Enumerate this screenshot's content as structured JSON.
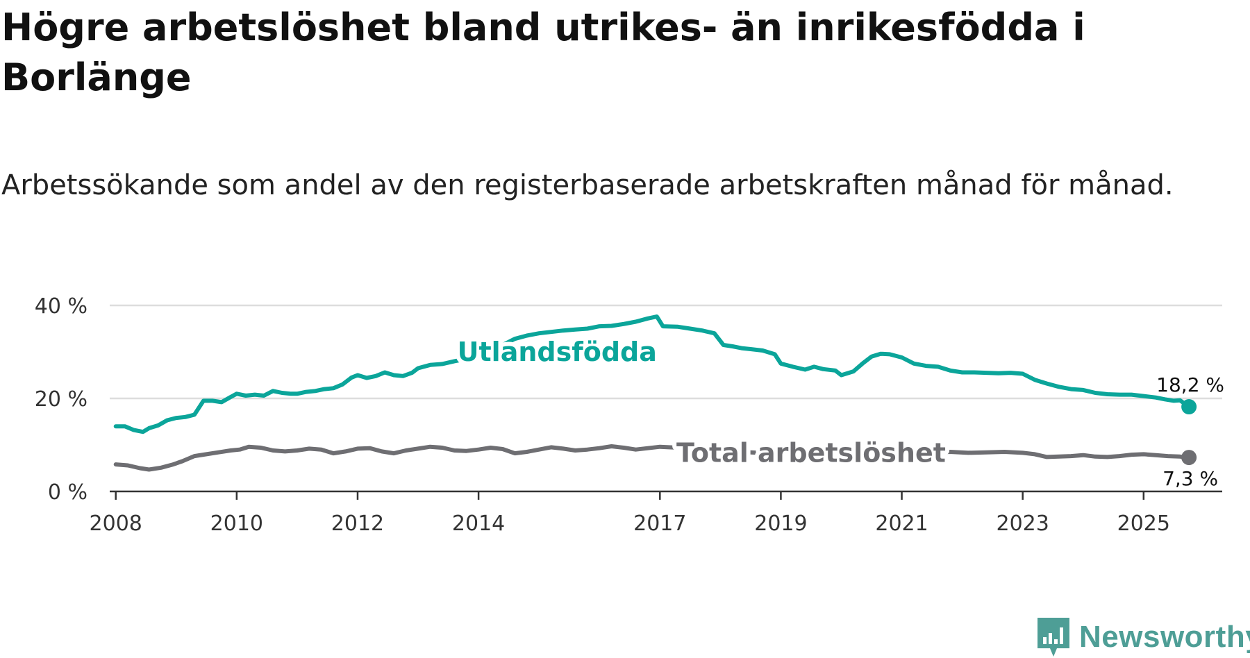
{
  "header": {
    "title": "Högre arbetslöshet bland utrikes- än inrikesfödda i Borlänge",
    "subtitle": "Arbetssökande som andel av den registerbaserade arbetskraften månad för månad."
  },
  "brand": {
    "name": "Newsworthy",
    "color": "#4e9e96"
  },
  "colors": {
    "foreign": "#0ba59a",
    "total": "#6e6e72",
    "grid": "#dddddd",
    "axis": "#333333"
  },
  "chart_data": {
    "type": "line",
    "title": "Högre arbetslöshet bland utrikes- än inrikesfödda i Borlänge",
    "xlabel": "",
    "ylabel": "",
    "xlim": [
      2007.9,
      2026.3
    ],
    "ylim": [
      0,
      40
    ],
    "y_ticks": [
      {
        "value": 0,
        "label": "0 %"
      },
      {
        "value": 20,
        "label": "20 %"
      },
      {
        "value": 40,
        "label": "40 %"
      }
    ],
    "x_ticks": [
      {
        "value": 2008,
        "label": "2008"
      },
      {
        "value": 2010,
        "label": "2010"
      },
      {
        "value": 2012,
        "label": "2012"
      },
      {
        "value": 2014,
        "label": "2014"
      },
      {
        "value": 2017,
        "label": "2017"
      },
      {
        "value": 2019,
        "label": "2019"
      },
      {
        "value": 2021,
        "label": "2021"
      },
      {
        "value": 2023,
        "label": "2023"
      },
      {
        "value": 2025,
        "label": "2025"
      }
    ],
    "grid": true,
    "series": [
      {
        "name": "Utlandsfödda",
        "color": "#0ba59a",
        "end_label": "18,2 %",
        "x": [
          2008.0,
          2008.15,
          2008.3,
          2008.45,
          2008.55,
          2008.7,
          2008.85,
          2009.0,
          2009.15,
          2009.3,
          2009.45,
          2009.6,
          2009.75,
          2009.9,
          2010.0,
          2010.15,
          2010.3,
          2010.45,
          2010.6,
          2010.75,
          2010.9,
          2011.0,
          2011.15,
          2011.3,
          2011.45,
          2011.6,
          2011.75,
          2011.9,
          2012.0,
          2012.15,
          2012.3,
          2012.45,
          2012.6,
          2012.75,
          2012.9,
          2013.0,
          2013.2,
          2013.4,
          2013.6,
          2013.8,
          2014.0,
          2014.2,
          2014.4,
          2014.6,
          2014.8,
          2015.0,
          2015.2,
          2015.4,
          2015.6,
          2015.8,
          2016.0,
          2016.2,
          2016.4,
          2016.6,
          2016.8,
          2016.95,
          2017.05,
          2017.3,
          2017.5,
          2017.7,
          2017.9,
          2018.05,
          2018.2,
          2018.35,
          2018.5,
          2018.7,
          2018.9,
          2019.0,
          2019.2,
          2019.4,
          2019.55,
          2019.7,
          2019.9,
          2020.0,
          2020.2,
          2020.35,
          2020.5,
          2020.65,
          2020.8,
          2021.0,
          2021.2,
          2021.4,
          2021.6,
          2021.8,
          2022.0,
          2022.2,
          2022.4,
          2022.6,
          2022.8,
          2023.0,
          2023.2,
          2023.4,
          2023.6,
          2023.8,
          2024.0,
          2024.2,
          2024.4,
          2024.6,
          2024.8,
          2025.0,
          2025.2,
          2025.35,
          2025.5,
          2025.6,
          2025.75
        ],
        "values": [
          14.0,
          14.0,
          13.2,
          12.8,
          13.6,
          14.2,
          15.3,
          15.8,
          16.0,
          16.5,
          19.5,
          19.5,
          19.2,
          20.3,
          21.0,
          20.6,
          20.8,
          20.6,
          21.6,
          21.2,
          21.0,
          21.0,
          21.4,
          21.6,
          22.0,
          22.2,
          23.0,
          24.5,
          25.0,
          24.4,
          24.8,
          25.6,
          25.0,
          24.8,
          25.5,
          26.5,
          27.2,
          27.4,
          28.0,
          28.5,
          29.2,
          30.5,
          31.5,
          32.8,
          33.5,
          34.0,
          34.3,
          34.6,
          34.8,
          35.0,
          35.5,
          35.6,
          36.0,
          36.5,
          37.2,
          37.6,
          35.5,
          35.4,
          35.0,
          34.6,
          34.0,
          31.5,
          31.2,
          30.8,
          30.6,
          30.3,
          29.5,
          27.5,
          26.8,
          26.2,
          26.8,
          26.3,
          26.0,
          25.0,
          25.8,
          27.5,
          29.0,
          29.6,
          29.5,
          28.8,
          27.5,
          27.0,
          26.8,
          26.0,
          25.6,
          25.6,
          25.5,
          25.4,
          25.5,
          25.3,
          24.0,
          23.2,
          22.5,
          22.0,
          21.8,
          21.2,
          20.9,
          20.8,
          20.8,
          20.5,
          20.2,
          19.8,
          19.5,
          19.6,
          18.2
        ]
      },
      {
        "name": "Total arbetslöshet",
        "color": "#6e6e72",
        "end_label": "7,3 %",
        "x": [
          2008.0,
          2008.2,
          2008.4,
          2008.55,
          2008.75,
          2008.95,
          2009.1,
          2009.3,
          2009.5,
          2009.7,
          2009.9,
          2010.05,
          2010.2,
          2010.4,
          2010.6,
          2010.8,
          2011.0,
          2011.2,
          2011.4,
          2011.6,
          2011.8,
          2012.0,
          2012.2,
          2012.4,
          2012.6,
          2012.8,
          2013.0,
          2013.2,
          2013.4,
          2013.6,
          2013.8,
          2014.0,
          2014.2,
          2014.4,
          2014.6,
          2014.8,
          2015.0,
          2015.2,
          2015.4,
          2015.6,
          2015.8,
          2016.0,
          2016.2,
          2016.4,
          2016.6,
          2016.8,
          2017.0,
          2017.3,
          2017.6,
          2017.9,
          2018.2,
          2018.5,
          2018.8,
          2019.1,
          2019.4,
          2019.7,
          2020.0,
          2020.3,
          2020.6,
          2020.9,
          2021.2,
          2021.5,
          2021.8,
          2022.1,
          2022.4,
          2022.7,
          2023.0,
          2023.2,
          2023.4,
          2023.6,
          2023.8,
          2024.0,
          2024.2,
          2024.4,
          2024.6,
          2024.8,
          2025.0,
          2025.2,
          2025.4,
          2025.6,
          2025.75
        ],
        "values": [
          5.8,
          5.6,
          5.0,
          4.7,
          5.1,
          5.8,
          6.5,
          7.6,
          8.0,
          8.4,
          8.8,
          9.0,
          9.6,
          9.4,
          8.8,
          8.6,
          8.8,
          9.2,
          9.0,
          8.2,
          8.6,
          9.2,
          9.3,
          8.6,
          8.2,
          8.8,
          9.2,
          9.6,
          9.4,
          8.8,
          8.7,
          9.0,
          9.4,
          9.1,
          8.2,
          8.5,
          9.0,
          9.5,
          9.2,
          8.8,
          9.0,
          9.3,
          9.7,
          9.4,
          9.0,
          9.3,
          9.6,
          9.4,
          9.0,
          8.8,
          8.6,
          8.4,
          8.2,
          8.4,
          8.6,
          8.4,
          8.6,
          8.8,
          8.5,
          8.4,
          8.3,
          8.4,
          8.5,
          8.3,
          8.4,
          8.5,
          8.3,
          8.0,
          7.4,
          7.5,
          7.6,
          7.8,
          7.5,
          7.4,
          7.6,
          7.9,
          8.0,
          7.8,
          7.6,
          7.5,
          7.3
        ]
      }
    ],
    "annotations": [
      {
        "series": "Utlandsfödda",
        "text": "Utlandsfödda",
        "x": 2015.3,
        "y": 30
      },
      {
        "series": "Total arbetslöshet",
        "text": "Total arbetslöshet",
        "x": 2019.5,
        "y": 8.3
      }
    ]
  }
}
